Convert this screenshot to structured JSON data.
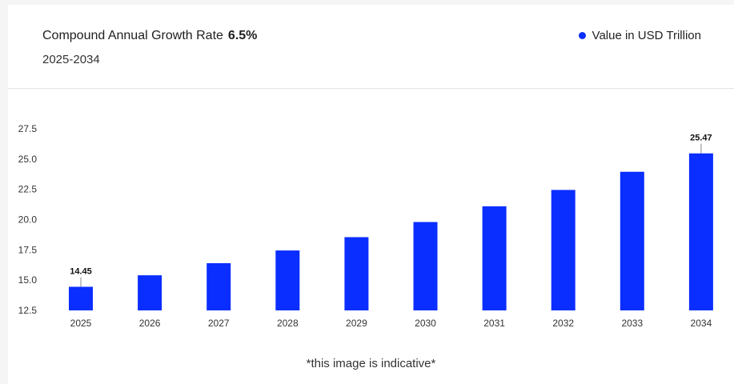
{
  "header": {
    "title": "Compound Annual Growth Rate",
    "cagr_value": "6.5%",
    "period": "2025-2034",
    "legend_label": "Value in USD Trillion"
  },
  "footnote": "*this image is indicative*",
  "colors": {
    "bar": "#0a2eff",
    "accent": "#0a2eff"
  },
  "chart_data": {
    "type": "bar",
    "categories": [
      "2025",
      "2026",
      "2027",
      "2028",
      "2029",
      "2030",
      "2031",
      "2032",
      "2033",
      "2034"
    ],
    "series": [
      {
        "name": "Value in USD Trillion",
        "values": [
          14.45,
          15.4,
          16.4,
          17.45,
          18.55,
          19.8,
          21.1,
          22.45,
          23.95,
          25.47
        ]
      }
    ],
    "data_labels": [
      {
        "category": "2025",
        "text": "14.45"
      },
      {
        "category": "2034",
        "text": "25.47"
      }
    ],
    "yticks": [
      "12.5",
      "15.0",
      "17.5",
      "20.0",
      "22.5",
      "25.0",
      "27.5"
    ],
    "ylim": [
      12.5,
      27.5
    ],
    "grid": false,
    "legend_position": "top-right"
  }
}
